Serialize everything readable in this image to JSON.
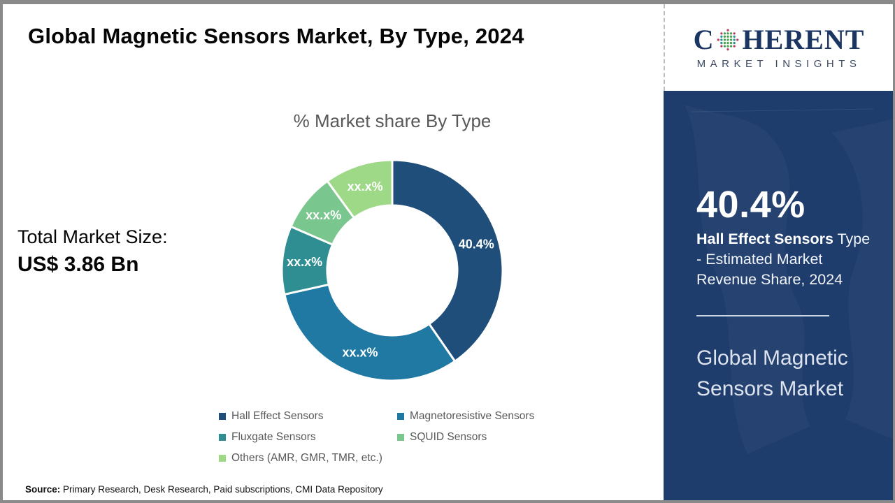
{
  "page": {
    "title": "Global Magnetic Sensors Market, By Type, 2024"
  },
  "logo": {
    "letter_c": "C",
    "letters_rest": "HERENT",
    "subtitle": "MARKET INSIGHTS",
    "brand_color": "#1c3663"
  },
  "total_market": {
    "label": "Total Market Size:",
    "value": "US$ 3.86 Bn"
  },
  "chart_data": {
    "type": "pie",
    "donut": true,
    "title": "% Market share By Type",
    "start_angle_deg": 0,
    "direction": "clockwise",
    "legend_position": "bottom",
    "slices": [
      {
        "label": "Hall Effect Sensors",
        "value": 40.4,
        "display_label": "40.4%",
        "color": "#1e4e79"
      },
      {
        "label": "Magnetoresistive Sensors",
        "value": 31.1,
        "display_label": "xx.x%",
        "color": "#2079a3"
      },
      {
        "label": "Fluxgate Sensors",
        "value": 10.0,
        "display_label": "xx.x%",
        "color": "#2f8e91"
      },
      {
        "label": "SQUID Sensors",
        "value": 8.5,
        "display_label": "xx.x%",
        "color": "#79c78f"
      },
      {
        "label": "Others (AMR, GMR, TMR, etc.)",
        "value": 10.0,
        "display_label": "xx.x%",
        "color": "#9ed987"
      }
    ]
  },
  "sidebar": {
    "background_color": "#1e3c6c",
    "stat_value": "40.4%",
    "stat_label_bold": "Hall Effect Sensors",
    "stat_label_rest": " Type - Estimated Market Revenue Share, 2024",
    "product_title": "Global Magnetic Sensors Market"
  },
  "source": {
    "prefix": "Source:",
    "text": " Primary Research, Desk Research, Paid subscriptions, CMI Data Repository"
  }
}
